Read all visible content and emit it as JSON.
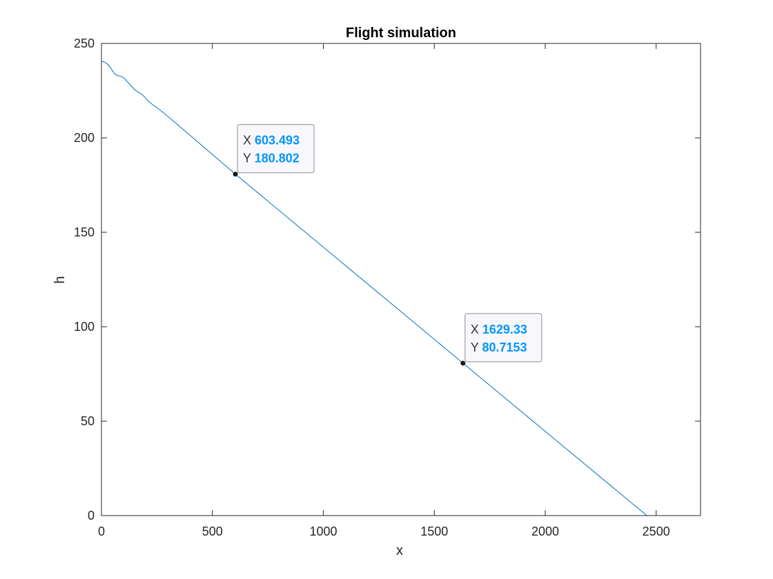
{
  "colors": {
    "series": "#0072BD",
    "datatip_value": "#0096FF",
    "axes": "#262626",
    "datatip_bg": "#F8F8FC",
    "datatip_border": "#8C8C8C",
    "marker": "#1A1A1A"
  },
  "chart_data": {
    "type": "line",
    "title": "Flight simulation",
    "xlabel": "x",
    "ylabel": "h",
    "xlim": [
      0,
      2700
    ],
    "ylim": [
      0,
      250
    ],
    "xticks": [
      0,
      500,
      1000,
      1500,
      2000,
      2500
    ],
    "yticks": [
      0,
      50,
      100,
      150,
      200,
      250
    ],
    "grid": false,
    "series": [
      {
        "points": [
          [
            0,
            240.5
          ],
          [
            12,
            240.2
          ],
          [
            25,
            239.3
          ],
          [
            38,
            237.6
          ],
          [
            50,
            235.5
          ],
          [
            62,
            233.6
          ],
          [
            75,
            232.9
          ],
          [
            88,
            232.6
          ],
          [
            100,
            231.8
          ],
          [
            112,
            230.3
          ],
          [
            125,
            228.7
          ],
          [
            138,
            227.0
          ],
          [
            150,
            225.5
          ],
          [
            165,
            224.2
          ],
          [
            180,
            223.2
          ],
          [
            195,
            221.6
          ],
          [
            210,
            219.6
          ],
          [
            230,
            217.6
          ],
          [
            250,
            216.0
          ],
          [
            275,
            213.7
          ],
          [
            300,
            211.3
          ],
          [
            603.493,
            180.802
          ],
          [
            1629.33,
            80.7153
          ],
          [
            2458,
            0
          ]
        ]
      }
    ],
    "datatips": [
      {
        "x_label": "X",
        "x_value": "603.493",
        "y_label": "Y",
        "y_value": "180.802",
        "x": 603.493,
        "y": 180.802
      },
      {
        "x_label": "X",
        "x_value": "1629.33",
        "y_label": "Y",
        "y_value": "80.7153",
        "x": 1629.33,
        "y": 80.7153
      }
    ]
  }
}
